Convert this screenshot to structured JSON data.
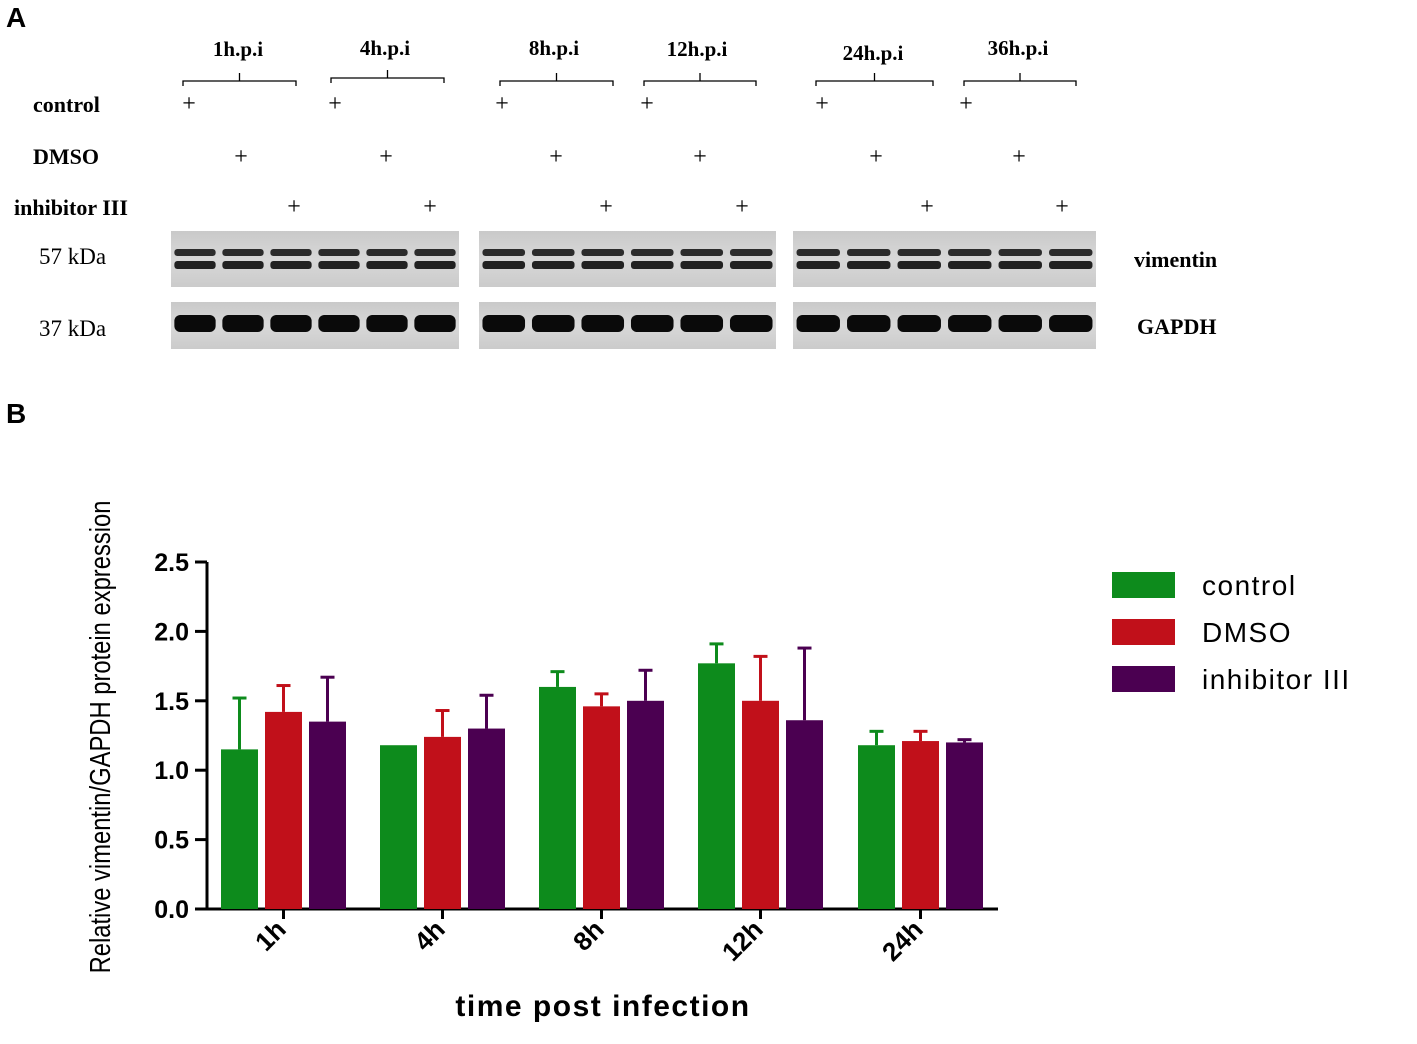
{
  "panels": {
    "a": "A",
    "b": "B"
  },
  "blot": {
    "time_points": [
      "1h.p.i",
      "4h.p.i",
      "8h.p.i",
      "12h.p.i",
      "24h.p.i",
      "36h.p.i"
    ],
    "conditions": [
      "control",
      "DMSO",
      "inhibitor III"
    ],
    "plus_sign": "+",
    "bands": [
      {
        "size": "57 kDa",
        "protein": "vimentin"
      },
      {
        "size": "37 kDa",
        "protein": "GAPDH"
      }
    ]
  },
  "chart_data": {
    "type": "bar",
    "categories": [
      "1h",
      "4h",
      "8h",
      "12h",
      "24h"
    ],
    "series": [
      {
        "name": "control",
        "color": "#0d8b1c",
        "values": [
          1.15,
          1.18,
          1.6,
          1.77,
          1.18
        ],
        "errors": [
          0.37,
          0.0,
          0.11,
          0.14,
          0.1
        ]
      },
      {
        "name": "DMSO",
        "color": "#c1101a",
        "values": [
          1.42,
          1.24,
          1.46,
          1.5,
          1.21
        ],
        "errors": [
          0.19,
          0.19,
          0.09,
          0.32,
          0.07
        ]
      },
      {
        "name": "inhibitor III",
        "color": "#4b0051",
        "values": [
          1.35,
          1.3,
          1.5,
          1.36,
          1.2
        ],
        "errors": [
          0.32,
          0.24,
          0.22,
          0.52,
          0.02
        ]
      }
    ],
    "yticks": [
      "0.0",
      "0.5",
      "1.0",
      "1.5",
      "2.0",
      "2.5"
    ],
    "ylim": [
      0,
      2.5
    ],
    "xlabel": "time post infection",
    "ylabel": "Relative vimentin/GAPDH protein expression",
    "legend_position": "right"
  }
}
